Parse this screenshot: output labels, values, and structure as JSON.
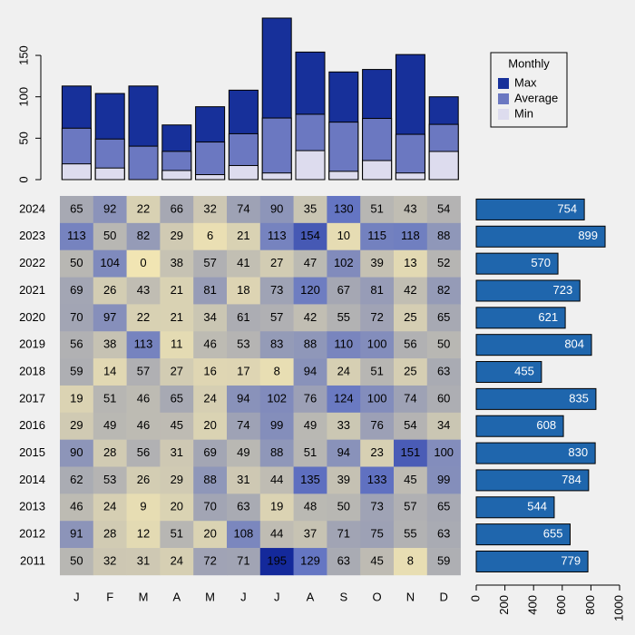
{
  "chart_data": [
    {
      "type": "bar",
      "series": [
        {
          "name": "Max",
          "color": "#17309a",
          "values": [
            113,
            104,
            113,
            66,
            88,
            108,
            195,
            154,
            130,
            133,
            151,
            100
          ]
        },
        {
          "name": "Average",
          "color": "#6b78c1",
          "values": [
            62.1,
            49.0,
            40.4,
            34.1,
            45.4,
            55.4,
            74.4,
            78.9,
            69.4,
            73.9,
            54.7,
            66.7
          ]
        },
        {
          "name": "Min",
          "color": "#dddcee",
          "values": [
            19,
            14,
            0,
            11,
            6,
            17,
            8,
            35,
            10,
            23,
            8,
            34
          ]
        }
      ],
      "ylim": [
        0,
        200
      ],
      "yticks": [
        0,
        50,
        100,
        150
      ],
      "legend_title": "Monthly",
      "legend": "top-right"
    },
    {
      "type": "heatmap",
      "x_categories": [
        "J",
        "F",
        "M",
        "A",
        "M",
        "J",
        "J",
        "A",
        "S",
        "O",
        "N",
        "D"
      ],
      "y_categories": [
        "2024",
        "2023",
        "2022",
        "2021",
        "2020",
        "2019",
        "2018",
        "2017",
        "2016",
        "2015",
        "2014",
        "2013",
        "2012",
        "2011"
      ],
      "values": [
        [
          65,
          92,
          22,
          66,
          32,
          74,
          90,
          35,
          130,
          51,
          43,
          54
        ],
        [
          113,
          50,
          82,
          29,
          6,
          21,
          113,
          154,
          10,
          115,
          118,
          88
        ],
        [
          50,
          104,
          0,
          38,
          57,
          41,
          27,
          47,
          102,
          39,
          13,
          52
        ],
        [
          69,
          26,
          43,
          21,
          81,
          18,
          73,
          120,
          67,
          81,
          42,
          82
        ],
        [
          70,
          97,
          22,
          21,
          34,
          61,
          57,
          42,
          55,
          72,
          25,
          65
        ],
        [
          56,
          38,
          113,
          11,
          46,
          53,
          83,
          88,
          110,
          100,
          56,
          50
        ],
        [
          59,
          14,
          57,
          27,
          16,
          17,
          8,
          94,
          24,
          51,
          25,
          63
        ],
        [
          19,
          51,
          46,
          65,
          24,
          94,
          102,
          76,
          124,
          100,
          74,
          60
        ],
        [
          29,
          49,
          46,
          45,
          20,
          74,
          99,
          49,
          33,
          76,
          54,
          34
        ],
        [
          90,
          28,
          56,
          31,
          69,
          49,
          88,
          51,
          94,
          23,
          151,
          100
        ],
        [
          62,
          53,
          26,
          29,
          88,
          31,
          44,
          135,
          39,
          133,
          45,
          99
        ],
        [
          46,
          24,
          9,
          20,
          70,
          63,
          19,
          48,
          50,
          73,
          57,
          65
        ],
        [
          91,
          28,
          12,
          51,
          20,
          108,
          44,
          37,
          71,
          75,
          55,
          63
        ],
        [
          50,
          32,
          31,
          24,
          72,
          71,
          195,
          129,
          63,
          45,
          8,
          59
        ]
      ],
      "colors": [
        "#f1e5b3",
        "#a7a9b3",
        "#6475c3",
        "#14299b"
      ]
    },
    {
      "type": "barh",
      "values": [
        754,
        899,
        570,
        723,
        621,
        804,
        455,
        835,
        608,
        830,
        784,
        544,
        655,
        779
      ],
      "color": "#1f66ad",
      "xlim": [
        0,
        1000
      ],
      "xticks": [
        0,
        200,
        400,
        600,
        800,
        1000
      ]
    }
  ]
}
